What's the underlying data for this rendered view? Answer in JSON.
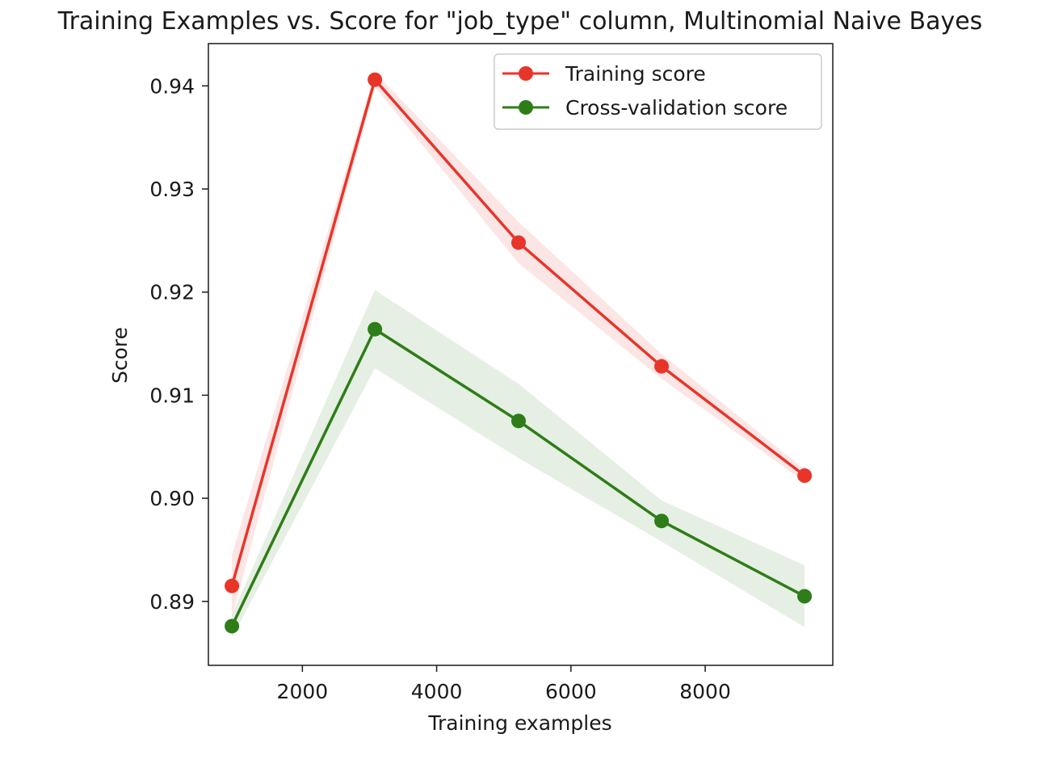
{
  "chart_data": {
    "type": "line",
    "title": "Training Examples vs. Score for \"job_type\" column, Multinomial Naive Bayes",
    "xlabel": "Training examples",
    "ylabel": "Score",
    "xlim": [
      600,
      9900
    ],
    "ylim": [
      0.8838,
      0.9441
    ],
    "xticks": [
      2000,
      4000,
      6000,
      8000
    ],
    "xtick_labels": [
      "2000",
      "4000",
      "6000",
      "8000"
    ],
    "yticks": [
      0.89,
      0.9,
      0.91,
      0.92,
      0.93,
      0.94
    ],
    "ytick_labels": [
      "0.89",
      "0.90",
      "0.91",
      "0.92",
      "0.93",
      "0.94"
    ],
    "grid": false,
    "legend_position": "top-right",
    "x": [
      950,
      3080,
      5220,
      7350,
      9480
    ],
    "series": [
      {
        "name": "Training score",
        "color": "#e8352a",
        "values": [
          0.8915,
          0.9406,
          0.9248,
          0.9128,
          0.9022
        ],
        "band_lower": [
          0.8885,
          0.9399,
          0.9228,
          0.9116,
          0.9016
        ],
        "band_upper": [
          0.8945,
          0.9413,
          0.9268,
          0.914,
          0.9028
        ]
      },
      {
        "name": "Cross-validation score",
        "color": "#2e7d18",
        "values": [
          0.8876,
          0.9164,
          0.9075,
          0.8978,
          0.8905
        ],
        "band_lower": [
          0.8865,
          0.9126,
          0.9039,
          0.8958,
          0.8875
        ],
        "band_upper": [
          0.8887,
          0.9202,
          0.9111,
          0.8998,
          0.8935
        ]
      }
    ]
  }
}
